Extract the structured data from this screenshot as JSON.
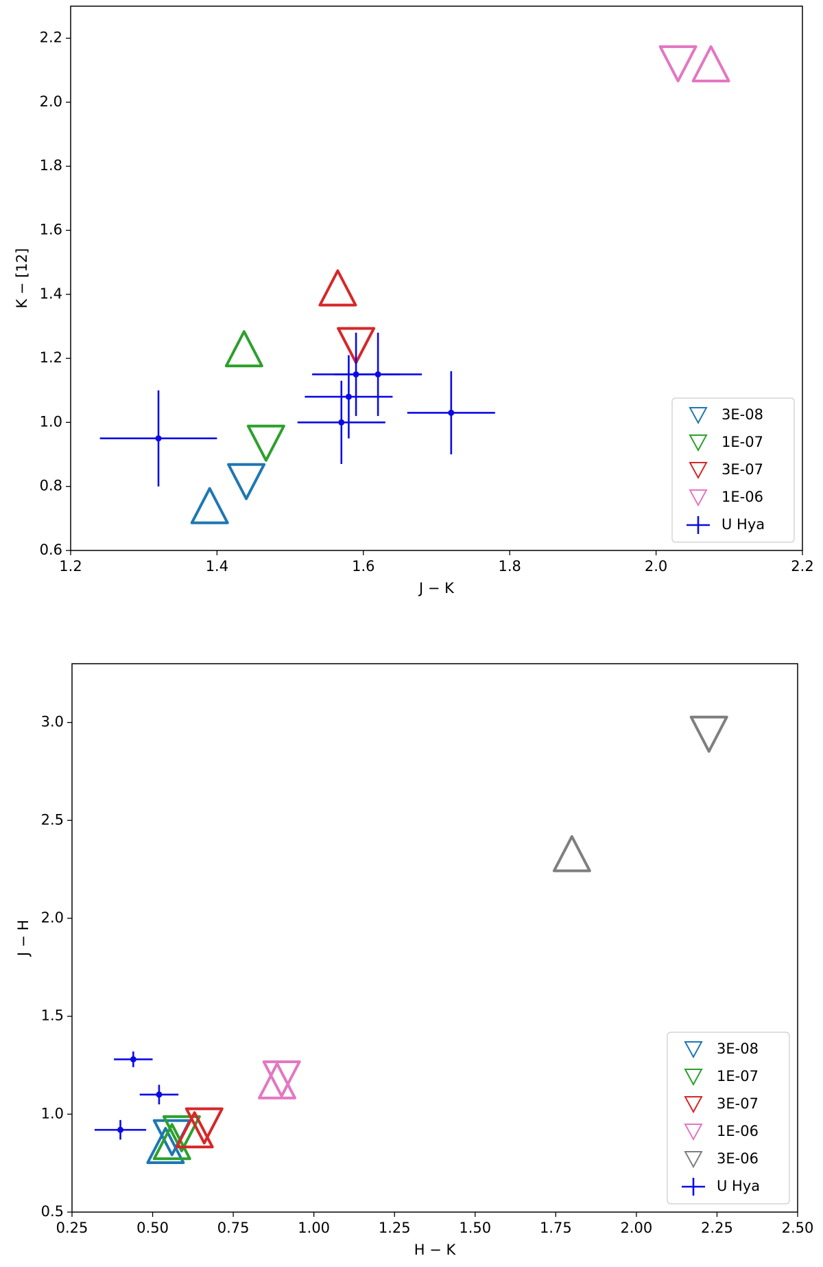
{
  "chart_data": [
    {
      "type": "scatter",
      "xlabel": "J − K",
      "ylabel": "K − [12]",
      "xlim": [
        1.2,
        2.2
      ],
      "ylim": [
        0.6,
        2.3
      ],
      "xticks": [
        1.2,
        1.4,
        1.6,
        1.8,
        {
          "value": 2.0,
          "label": "2.0"
        },
        2.2
      ],
      "yticks": [
        0.6,
        0.8,
        {
          "value": 1.0,
          "label": "1.0"
        },
        1.2,
        1.4,
        1.6,
        1.8,
        {
          "value": 2.0,
          "label": "2.0"
        },
        2.2
      ],
      "legend": "lower right",
      "grid": false,
      "series": [
        {
          "name": "3E-08",
          "color": "#1f77b4",
          "markers": [
            "^",
            "v"
          ],
          "x": [
            1.39,
            1.44
          ],
          "values": [
            0.74,
            0.815
          ]
        },
        {
          "name": "1E-07",
          "color": "#2ca02c",
          "markers": [
            "^",
            "v"
          ],
          "x": [
            1.437,
            1.467
          ],
          "values": [
            1.23,
            0.935
          ]
        },
        {
          "name": "3E-07",
          "color": "#d62728",
          "markers": [
            "^",
            "v"
          ],
          "x": [
            1.565,
            1.59
          ],
          "values": [
            1.42,
            1.24
          ]
        },
        {
          "name": "1E-06",
          "color": "#e377c2",
          "markers": [
            "^",
            "v"
          ],
          "x": [
            2.075,
            2.03
          ],
          "values": [
            2.12,
            2.12
          ]
        },
        {
          "name": "U Hya",
          "color": "#0a0ae6",
          "markers": [
            "+"
          ],
          "x": [
            1.32,
            1.57,
            1.58,
            1.59,
            1.62,
            1.72
          ],
          "values": [
            0.95,
            1.0,
            1.08,
            1.15,
            1.15,
            1.03
          ],
          "xerr": [
            0.08,
            0.06,
            0.06,
            0.06,
            0.06,
            0.06
          ],
          "yerr": [
            0.15,
            0.13,
            0.13,
            0.13,
            0.13,
            0.13
          ]
        }
      ]
    },
    {
      "type": "scatter",
      "xlabel": "H − K",
      "ylabel": "J − H",
      "xlim": [
        0.25,
        2.5
      ],
      "ylim": [
        0.5,
        3.3
      ],
      "xticks": [
        0.25,
        {
          "value": 0.5,
          "label": "0.50"
        },
        0.75,
        {
          "value": 1.0,
          "label": "1.00"
        },
        1.25,
        {
          "value": 1.5,
          "label": "1.50"
        },
        1.75,
        {
          "value": 2.0,
          "label": "2.00"
        },
        2.25,
        {
          "value": 2.5,
          "label": "2.50"
        }
      ],
      "yticks": [
        0.5,
        {
          "value": 1.0,
          "label": "1.0"
        },
        1.5,
        {
          "value": 2.0,
          "label": "2.0"
        },
        2.5,
        {
          "value": 3.0,
          "label": "3.0"
        }
      ],
      "legend": "lower right",
      "grid": false,
      "series": [
        {
          "name": "3E-08",
          "color": "#1f77b4",
          "markers": [
            "^",
            "v"
          ],
          "x": [
            0.54,
            0.56
          ],
          "values": [
            0.84,
            0.88
          ]
        },
        {
          "name": "1E-07",
          "color": "#2ca02c",
          "markers": [
            "^",
            "v"
          ],
          "x": [
            0.56,
            0.59
          ],
          "values": [
            0.86,
            0.9
          ]
        },
        {
          "name": "3E-07",
          "color": "#d62728",
          "markers": [
            "^",
            "v"
          ],
          "x": [
            0.63,
            0.66
          ],
          "values": [
            0.92,
            0.94
          ]
        },
        {
          "name": "1E-06",
          "color": "#e377c2",
          "markers": [
            "^",
            "v"
          ],
          "x": [
            0.886,
            0.9
          ],
          "values": [
            1.17,
            1.18
          ]
        },
        {
          "name": "3E-06",
          "color": "#7f7f7f",
          "markers": [
            "^",
            "v"
          ],
          "x": [
            1.8,
            2.225
          ],
          "values": [
            2.33,
            2.94
          ]
        },
        {
          "name": "U Hya",
          "color": "#0a0ae6",
          "markers": [
            "+"
          ],
          "x": [
            0.44,
            0.52,
            0.4
          ],
          "values": [
            1.28,
            1.1,
            0.92
          ],
          "xerr": [
            0.06,
            0.06,
            0.08
          ],
          "yerr": [
            0.04,
            0.05,
            0.05
          ]
        }
      ]
    }
  ]
}
